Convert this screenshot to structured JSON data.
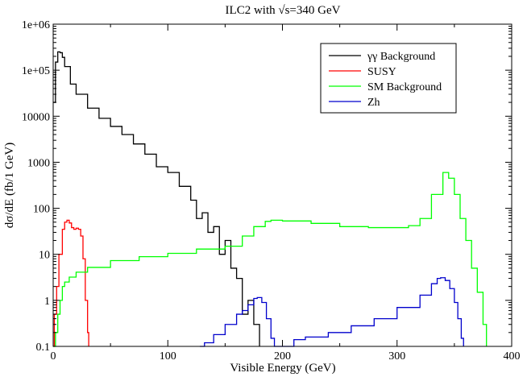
{
  "chart_data": {
    "type": "line",
    "title": "ILC2 with √s=340 GeV",
    "xlabel": "Visible Energy (GeV)",
    "ylabel": "dσ/dE   (fb/1 GeV)",
    "xlim": [
      0,
      400
    ],
    "ylim": [
      0.1,
      1000000
    ],
    "yscale": "log",
    "grid": false,
    "legend_position": "top-right",
    "x_ticks": [
      0,
      100,
      200,
      300,
      400
    ],
    "x_tick_labels": [
      "0",
      "100",
      "200",
      "300",
      "400"
    ],
    "y_ticks": [
      0.1,
      1,
      10,
      100,
      1000,
      10000,
      100000,
      1000000
    ],
    "y_tick_labels": [
      "0.1",
      "1",
      "10",
      "100",
      "1000",
      "10000",
      "1e+05",
      "1e+06"
    ],
    "series": [
      {
        "name": "γγ Background",
        "color": "#000000",
        "x": [
          0,
          2,
          4,
          6,
          8,
          10,
          15,
          20,
          30,
          40,
          50,
          60,
          70,
          80,
          90,
          100,
          110,
          120,
          125,
          130,
          135,
          140,
          145,
          150,
          155,
          160,
          165,
          170,
          175,
          180
        ],
        "y": [
          20000,
          150000,
          250000,
          240000,
          190000,
          120000,
          50000,
          30000,
          15000,
          9000,
          6000,
          4000,
          2500,
          1500,
          800,
          600,
          300,
          150,
          60,
          80,
          30,
          40,
          10,
          20,
          5,
          3,
          0.5,
          1,
          0.3,
          0.1
        ]
      },
      {
        "name": "SUSY",
        "color": "#ff0000",
        "x": [
          0,
          1,
          3,
          5,
          8,
          10,
          12,
          14,
          16,
          18,
          20,
          22,
          24,
          26,
          28,
          30,
          31
        ],
        "y": [
          0.1,
          0.5,
          2,
          10,
          35,
          50,
          55,
          48,
          38,
          35,
          37,
          35,
          25,
          8,
          1,
          0.2,
          0.1
        ]
      },
      {
        "name": "SM Background",
        "color": "#00ff00",
        "x": [
          0,
          2,
          4,
          6,
          8,
          10,
          14,
          20,
          30,
          50,
          75,
          100,
          125,
          150,
          165,
          175,
          185,
          190,
          200,
          225,
          250,
          275,
          300,
          310,
          320,
          330,
          340,
          345,
          350,
          355,
          360,
          365,
          370,
          375,
          378
        ],
        "y": [
          0.1,
          0.2,
          0.5,
          1,
          2,
          2.5,
          3.2,
          4.1,
          5.2,
          7.3,
          8.9,
          10.5,
          13,
          15,
          25,
          40,
          52,
          55,
          53,
          47,
          40,
          38,
          38,
          42,
          60,
          200,
          600,
          450,
          200,
          60,
          20,
          5,
          1.5,
          0.3,
          0.1
        ]
      },
      {
        "name": "Zh",
        "color": "#0000cc",
        "x": [
          128,
          132,
          140,
          150,
          160,
          165,
          170,
          175,
          178,
          182,
          186,
          190,
          193,
          200,
          210,
          220,
          240,
          260,
          280,
          300,
          320,
          330,
          335,
          338,
          342,
          346,
          350,
          353,
          356,
          358
        ],
        "y": [
          0.1,
          0.12,
          0.18,
          0.3,
          0.5,
          0.6,
          0.8,
          1.1,
          1.15,
          0.9,
          0.4,
          0.15,
          0.1,
          0.1,
          0.14,
          0.16,
          0.2,
          0.28,
          0.4,
          0.7,
          1.3,
          2.3,
          3,
          3.1,
          2.7,
          1.8,
          0.9,
          0.4,
          0.15,
          0.1
        ]
      }
    ]
  }
}
